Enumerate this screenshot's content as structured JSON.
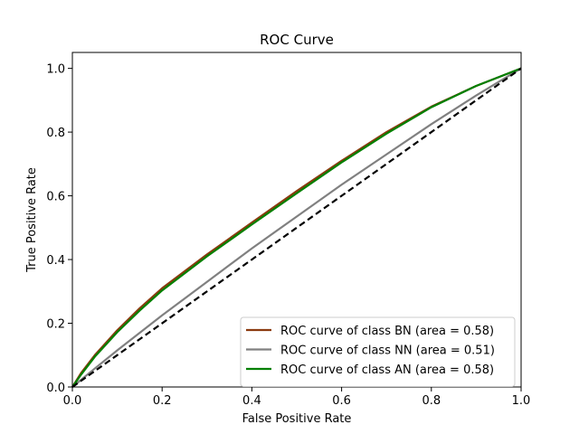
{
  "chart_data": {
    "type": "line",
    "title": "ROC Curve",
    "xlabel": "False Positive Rate",
    "ylabel": "True Positive Rate",
    "xlim": [
      0.0,
      1.0
    ],
    "ylim": [
      0.0,
      1.05
    ],
    "xticks": [
      "0.0",
      "0.2",
      "0.4",
      "0.6",
      "0.8",
      "1.0"
    ],
    "yticks": [
      "0.0",
      "0.2",
      "0.4",
      "0.6",
      "0.8",
      "1.0"
    ],
    "grid": false,
    "legend_position": "lower-right",
    "series": [
      {
        "name": "ROC curve of class BN (area = 0.58)",
        "color": "#8b3a0f",
        "x": [
          0,
          0.02,
          0.05,
          0.1,
          0.15,
          0.2,
          0.3,
          0.4,
          0.5,
          0.6,
          0.7,
          0.8,
          0.9,
          1.0
        ],
        "y": [
          0,
          0.045,
          0.1,
          0.178,
          0.247,
          0.31,
          0.416,
          0.516,
          0.615,
          0.71,
          0.8,
          0.88,
          0.945,
          1.0
        ]
      },
      {
        "name": "ROC curve of class NN (area = 0.51)",
        "color": "#808080",
        "x": [
          0,
          0.05,
          0.1,
          0.2,
          0.3,
          0.4,
          0.5,
          0.6,
          0.7,
          0.8,
          0.9,
          1.0
        ],
        "y": [
          0,
          0.058,
          0.115,
          0.225,
          0.33,
          0.435,
          0.535,
          0.635,
          0.73,
          0.825,
          0.915,
          1.0
        ]
      },
      {
        "name": "ROC curve of class AN (area = 0.58)",
        "color": "#008000",
        "x": [
          0,
          0.02,
          0.05,
          0.1,
          0.15,
          0.2,
          0.3,
          0.4,
          0.5,
          0.6,
          0.7,
          0.8,
          0.9,
          1.0
        ],
        "y": [
          0,
          0.04,
          0.095,
          0.172,
          0.24,
          0.303,
          0.41,
          0.51,
          0.608,
          0.705,
          0.795,
          0.878,
          0.945,
          1.0
        ]
      },
      {
        "name": "",
        "color": "#000000",
        "dashed": true,
        "x": [
          0,
          1.0
        ],
        "y": [
          0,
          1.0
        ]
      }
    ]
  }
}
